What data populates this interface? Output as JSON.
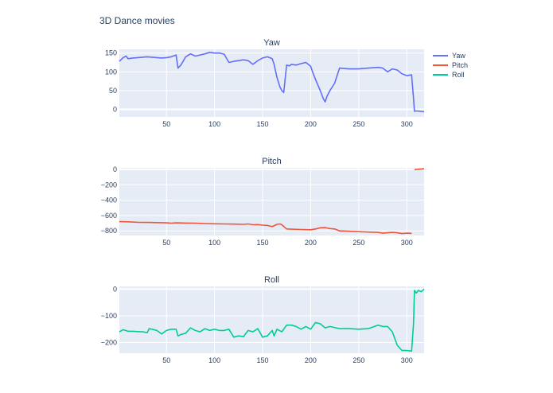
{
  "page_title": "3D Dance movies",
  "chart_data": [
    {
      "type": "line",
      "title": "Yaw",
      "series_name": "Yaw",
      "color": "#636efa",
      "xlim": [
        1,
        318
      ],
      "ylim": [
        -20,
        160
      ],
      "xticks": [
        50,
        100,
        150,
        200,
        250,
        300
      ],
      "yticks": [
        0,
        50,
        100,
        150
      ],
      "x": [
        1,
        5,
        8,
        10,
        15,
        20,
        30,
        40,
        45,
        50,
        55,
        60,
        62,
        65,
        70,
        75,
        80,
        85,
        90,
        95,
        100,
        105,
        110,
        115,
        120,
        125,
        130,
        135,
        140,
        145,
        150,
        155,
        160,
        162,
        165,
        168,
        170,
        172,
        175,
        178,
        180,
        185,
        190,
        195,
        200,
        202,
        205,
        210,
        213,
        215,
        217,
        220,
        225,
        230,
        240,
        250,
        260,
        270,
        275,
        280,
        285,
        290,
        295,
        300,
        305,
        307,
        308,
        310,
        315,
        318
      ],
      "y": [
        128,
        138,
        142,
        135,
        137,
        138,
        140,
        138,
        137,
        138,
        140,
        145,
        110,
        118,
        140,
        148,
        142,
        145,
        148,
        152,
        150,
        150,
        147,
        125,
        128,
        130,
        132,
        130,
        120,
        130,
        137,
        140,
        135,
        120,
        85,
        60,
        50,
        45,
        118,
        116,
        120,
        118,
        122,
        125,
        115,
        100,
        80,
        50,
        30,
        20,
        35,
        50,
        70,
        110,
        108,
        108,
        110,
        112,
        110,
        100,
        108,
        105,
        95,
        90,
        92,
        30,
        -5,
        -4,
        -5,
        -6
      ]
    },
    {
      "type": "line",
      "title": "Pitch",
      "series_name": "Pitch",
      "color": "#ef553b",
      "xlim": [
        1,
        318
      ],
      "ylim": [
        -860,
        20
      ],
      "xticks": [
        50,
        100,
        150,
        200,
        250,
        300
      ],
      "yticks": [
        0,
        -200,
        -400,
        -600,
        -800
      ],
      "segments": [
        {
          "x": [
            1,
            10,
            20,
            30,
            40,
            50,
            55,
            60,
            70,
            80,
            90,
            100,
            110,
            120,
            130,
            135,
            140,
            145,
            150,
            155,
            160,
            165,
            168,
            170,
            175,
            180,
            190,
            200,
            205,
            210,
            215,
            220,
            225,
            230,
            240,
            250,
            260,
            270,
            275,
            280,
            285,
            290,
            295,
            300,
            305
          ],
          "y": [
            -680,
            -682,
            -688,
            -690,
            -692,
            -695,
            -700,
            -695,
            -698,
            -700,
            -705,
            -708,
            -710,
            -712,
            -715,
            -710,
            -720,
            -718,
            -725,
            -730,
            -745,
            -715,
            -710,
            -720,
            -775,
            -778,
            -782,
            -785,
            -775,
            -760,
            -758,
            -770,
            -775,
            -800,
            -805,
            -810,
            -815,
            -820,
            -830,
            -825,
            -820,
            -825,
            -835,
            -830,
            -832
          ]
        },
        {
          "x": [
            308,
            310,
            315,
            318
          ],
          "y": [
            -5,
            0,
            5,
            10
          ]
        }
      ]
    },
    {
      "type": "line",
      "title": "Roll",
      "series_name": "Roll",
      "color": "#00cc96",
      "xlim": [
        1,
        318
      ],
      "ylim": [
        -240,
        10
      ],
      "xticks": [
        50,
        100,
        150,
        200,
        250,
        300
      ],
      "yticks": [
        0,
        -100,
        -200
      ],
      "x": [
        1,
        5,
        10,
        15,
        20,
        25,
        30,
        32,
        35,
        40,
        45,
        50,
        55,
        60,
        62,
        65,
        70,
        75,
        80,
        85,
        90,
        95,
        100,
        105,
        110,
        115,
        120,
        125,
        130,
        135,
        140,
        145,
        150,
        155,
        160,
        162,
        165,
        170,
        175,
        180,
        185,
        190,
        195,
        200,
        205,
        210,
        215,
        220,
        230,
        240,
        250,
        260,
        270,
        275,
        280,
        285,
        290,
        295,
        300,
        305,
        307,
        308,
        310,
        312,
        315,
        318
      ],
      "y": [
        -160,
        -152,
        -158,
        -158,
        -159,
        -160,
        -163,
        -148,
        -150,
        -155,
        -168,
        -155,
        -150,
        -150,
        -175,
        -170,
        -165,
        -145,
        -155,
        -160,
        -148,
        -155,
        -150,
        -155,
        -155,
        -150,
        -180,
        -175,
        -178,
        -155,
        -160,
        -148,
        -180,
        -175,
        -155,
        -175,
        -150,
        -160,
        -135,
        -135,
        -140,
        -150,
        -140,
        -150,
        -125,
        -130,
        -145,
        -140,
        -148,
        -148,
        -150,
        -148,
        -135,
        -140,
        -140,
        -160,
        -210,
        -230,
        -230,
        -232,
        -130,
        -5,
        -15,
        -5,
        -10,
        0
      ]
    }
  ]
}
